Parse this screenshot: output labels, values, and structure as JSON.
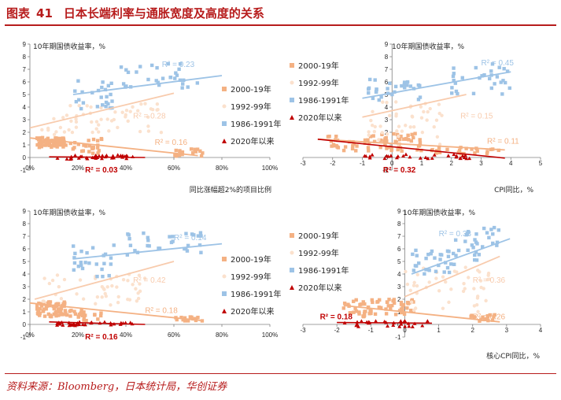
{
  "figure": {
    "label": "图表",
    "number": "41",
    "title": "日本长端利率与通胀宽度及高度的关系",
    "source": "资料来源：Bloomberg，日本统计局，华创证券"
  },
  "colors": {
    "c2000": "#f4b183",
    "c1992": "#fbe1cd",
    "c1986": "#9dc3e6",
    "c2020": "#c00000",
    "r2000": "#f4b183",
    "r1992": "#f8cbad",
    "r1986": "#9dc3e6",
    "r2020": "#c00000",
    "axis": "#808080",
    "text": "#262626"
  },
  "chart_data": [
    {
      "id": "tl",
      "type": "scatter",
      "ylabel": "10年期国债收益率，%",
      "xlabel": "同比涨幅超2%的项目比例",
      "xlim": [
        0,
        100
      ],
      "ylim": [
        -1,
        9
      ],
      "xticks": [
        "0%",
        "20%",
        "40%",
        "60%",
        "80%",
        "100%"
      ],
      "xtickvals": [
        0,
        20,
        40,
        60,
        80,
        100
      ],
      "yticks": [
        "-1",
        "0",
        "1",
        "2",
        "3",
        "4",
        "5",
        "6",
        "7",
        "8",
        "9"
      ],
      "ytickvals": [
        -1,
        0,
        1,
        2,
        3,
        4,
        5,
        6,
        7,
        8,
        9
      ],
      "legend": [
        "2000-19年",
        "1992-99年",
        "1986-1991年",
        "2020年以来"
      ],
      "series": [
        {
          "key": "2000",
          "name": "2000-19年",
          "clusters": [
            [
              3,
              15,
              0.8,
              1.6,
              70
            ],
            [
              15,
              30,
              0.3,
              1.5,
              25
            ],
            [
              60,
              72,
              0.1,
              0.7,
              18
            ]
          ],
          "trend": [
            [
              0,
              1.55
            ],
            [
              70,
              0.15
            ]
          ],
          "r2": "R² = 0.16",
          "r2pos": [
            52,
            1.0
          ]
        },
        {
          "key": "1992",
          "name": "1992-99年",
          "clusters": [
            [
              10,
              55,
              1.8,
              4.3,
              45
            ],
            [
              5,
              20,
              2.0,
              3.5,
              12
            ]
          ],
          "trend": [
            [
              0,
              2.35
            ],
            [
              60,
              5.1
            ]
          ],
          "r2": "R² = 0.28",
          "r2pos": [
            43,
            3.1
          ]
        },
        {
          "key": "1986",
          "name": "1986-1991年",
          "clusters": [
            [
              18,
              35,
              3.8,
              6.2,
              25
            ],
            [
              38,
              70,
              5.5,
              7.5,
              30
            ]
          ],
          "trend": [
            [
              18,
              5.0
            ],
            [
              80,
              6.5
            ]
          ],
          "r2": "R² = 0.23",
          "r2pos": [
            55,
            7.2
          ]
        },
        {
          "key": "2020",
          "name": "2020年以来",
          "clusters": [
            [
              10,
              45,
              -0.15,
              0.2,
              35
            ]
          ],
          "trend": [
            [
              8,
              0.05
            ],
            [
              48,
              0.0
            ]
          ],
          "r2": "R² = 0.03",
          "r2pos": [
            23,
            -1.2
          ]
        }
      ]
    },
    {
      "id": "tr",
      "type": "scatter",
      "ylabel": "10年期国债收益率，%",
      "xlabel": "CPI同比，%",
      "xlim": [
        -3,
        5
      ],
      "ylim": [
        -1,
        9
      ],
      "xticks": [
        "-3",
        "-2",
        "-1",
        "0",
        "1",
        "2",
        "3",
        "4",
        "5"
      ],
      "xtickvals": [
        -3,
        -2,
        -1,
        0,
        1,
        2,
        3,
        4,
        5
      ],
      "yticks": [
        "-1",
        "0",
        "1",
        "2",
        "3",
        "4",
        "5",
        "6",
        "7",
        "8",
        "9"
      ],
      "ytickvals": [
        -1,
        0,
        1,
        2,
        3,
        4,
        5,
        6,
        7,
        8,
        9
      ],
      "legend": [
        "2000-19年",
        "1992-99年",
        "1986-1991年",
        "2020年以来"
      ],
      "series": [
        {
          "key": "2000",
          "name": "2000-19年",
          "clusters": [
            [
              -2.2,
              1.0,
              0.5,
              1.9,
              70
            ],
            [
              1.2,
              3.6,
              0.3,
              0.8,
              25
            ]
          ],
          "trend": [
            [
              -2.5,
              1.45
            ],
            [
              3.8,
              0.6
            ]
          ],
          "r2": "R² = 0.11",
          "r2pos": [
            3.2,
            1.1
          ]
        },
        {
          "key": "1992",
          "name": "1992-99年",
          "clusters": [
            [
              -0.8,
              1.8,
              1.0,
              4.5,
              45
            ]
          ],
          "trend": [
            [
              -1.0,
              3.2
            ],
            [
              2.5,
              5.0
            ]
          ],
          "r2": "R² = 0.15",
          "r2pos": [
            2.3,
            3.1
          ]
        },
        {
          "key": "1986",
          "name": "1986-1991年",
          "clusters": [
            [
              -0.8,
              1.0,
              4.5,
              6.3,
              30
            ],
            [
              2.0,
              4.0,
              5.0,
              7.5,
              30
            ]
          ],
          "trend": [
            [
              -1.0,
              4.7
            ],
            [
              4.0,
              6.8
            ]
          ],
          "r2": "R² = 0.45",
          "r2pos": [
            3.0,
            7.3
          ]
        },
        {
          "key": "2020",
          "name": "2020年以来",
          "clusters": [
            [
              -1.2,
              2.8,
              -0.1,
              0.25,
              30
            ]
          ],
          "trend": [
            [
              -2.5,
              1.45
            ],
            [
              3.8,
              -0.05
            ]
          ],
          "r2": "R² = 0.32",
          "r2pos": [
            -0.3,
            -1.2
          ]
        }
      ]
    },
    {
      "id": "bl",
      "type": "scatter",
      "ylabel": "10年期国债收益率，%",
      "xlabel": "",
      "xlim": [
        0,
        100
      ],
      "ylim": [
        -1,
        9
      ],
      "xticks": [
        "0%",
        "20%",
        "40%",
        "60%",
        "80%",
        "100%"
      ],
      "xtickvals": [
        0,
        20,
        40,
        60,
        80,
        100
      ],
      "yticks": [
        "-1",
        "0",
        "1",
        "2",
        "3",
        "4",
        "5",
        "6",
        "7",
        "8",
        "9"
      ],
      "ytickvals": [
        -1,
        0,
        1,
        2,
        3,
        4,
        5,
        6,
        7,
        8,
        9
      ],
      "legend": [
        "2000-19年",
        "1992-99年",
        "1986-1991年",
        "2020年以来"
      ],
      "series": [
        {
          "key": "2000",
          "name": "2000-19年",
          "clusters": [
            [
              3,
              15,
              0.6,
              1.8,
              70
            ],
            [
              15,
              30,
              0.3,
              1.2,
              25
            ],
            [
              60,
              72,
              0.2,
              0.6,
              15
            ]
          ],
          "trend": [
            [
              0,
              1.7
            ],
            [
              72,
              0.3
            ]
          ],
          "r2": "R² = 0.18",
          "r2pos": [
            48,
            0.9
          ]
        },
        {
          "key": "1992",
          "name": "1992-99年",
          "clusters": [
            [
              5,
              50,
              1.5,
              4.0,
              45
            ]
          ],
          "trend": [
            [
              2,
              2.0
            ],
            [
              60,
              5.0
            ]
          ],
          "r2": "R² = 0.42",
          "r2pos": [
            43,
            3.3
          ]
        },
        {
          "key": "1986",
          "name": "1986-1991年",
          "clusters": [
            [
              18,
              35,
              3.8,
              6.3,
              25
            ],
            [
              38,
              72,
              5.5,
              7.3,
              30
            ]
          ],
          "trend": [
            [
              18,
              5.2
            ],
            [
              80,
              6.4
            ]
          ],
          "r2": "R² = 0.14",
          "r2pos": [
            60,
            6.7
          ]
        },
        {
          "key": "2020",
          "name": "2020年以来",
          "clusters": [
            [
              10,
              50,
              -0.1,
              0.2,
              35
            ]
          ],
          "trend": [
            [
              8,
              0.2
            ],
            [
              48,
              0.0
            ]
          ],
          "r2": "R² = 0.16",
          "r2pos": [
            23,
            -1.2
          ]
        }
      ]
    },
    {
      "id": "br",
      "type": "scatter",
      "ylabel": "10年期国债收益率，%",
      "xlabel": "核心CPI同比，%",
      "xlim": [
        -3,
        4
      ],
      "ylim": [
        -1,
        9
      ],
      "xticks": [
        "-3",
        "-2",
        "-1",
        "0",
        "1",
        "2",
        "3",
        "4"
      ],
      "xtickvals": [
        -3,
        -2,
        -1,
        0,
        1,
        2,
        3,
        4
      ],
      "yticks": [
        "-1",
        "0",
        "1",
        "2",
        "3",
        "4",
        "5",
        "6",
        "7",
        "8",
        "9"
      ],
      "ytickvals": [
        -1,
        0,
        1,
        2,
        3,
        4,
        5,
        6,
        7,
        8,
        9
      ],
      "legend": [
        "2000-19年",
        "1992-99年",
        "1986-1991年",
        "2020年以来"
      ],
      "series": [
        {
          "key": "2000",
          "name": "2000-19年",
          "clusters": [
            [
              -1.8,
              0.3,
              0.6,
              2.0,
              70
            ],
            [
              1.8,
              2.8,
              0.2,
              0.8,
              15
            ]
          ],
          "trend": [
            [
              -1.8,
              1.5
            ],
            [
              2.8,
              0.2
            ]
          ],
          "r2": "R² = 0.26",
          "r2pos": [
            2.0,
            0.4
          ]
        },
        {
          "key": "1992",
          "name": "1992-99年",
          "clusters": [
            [
              0.0,
              2.5,
              1.0,
              4.6,
              45
            ]
          ],
          "trend": [
            [
              0.0,
              2.2
            ],
            [
              2.8,
              5.4
            ]
          ],
          "r2": "R² = 0.36",
          "r2pos": [
            2.0,
            3.3
          ]
        },
        {
          "key": "1986",
          "name": "1986-1991年",
          "clusters": [
            [
              0.2,
              1.5,
              4.0,
              6.0,
              30
            ],
            [
              1.5,
              2.8,
              5.0,
              7.8,
              30
            ]
          ],
          "trend": [
            [
              0.2,
              4.0
            ],
            [
              3.1,
              6.8
            ]
          ],
          "r2": "R² = 0.33",
          "r2pos": [
            1.0,
            7.0
          ]
        },
        {
          "key": "2020",
          "name": "2020年以来",
          "clusters": [
            [
              -1.8,
              0.7,
              -0.2,
              0.3,
              30
            ]
          ],
          "trend": [
            [
              -2.0,
              0.15
            ],
            [
              0.8,
              0.1
            ]
          ],
          "r2": "R² = 0.18",
          "r2pos": [
            -2.5,
            0.4
          ]
        }
      ]
    }
  ]
}
